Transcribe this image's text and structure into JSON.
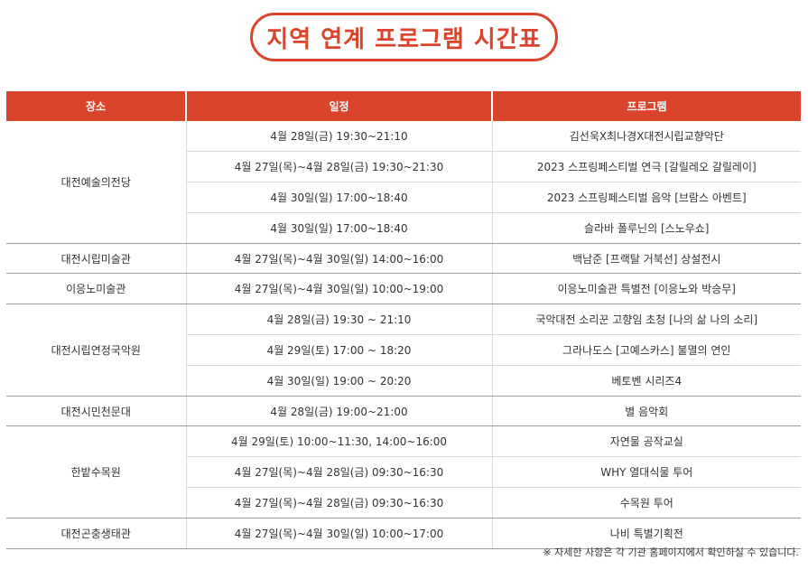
{
  "title": "지역 연계 프로그램 시간표",
  "headers": {
    "venue": "장소",
    "schedule": "일정",
    "program": "프로그램"
  },
  "groups": [
    {
      "venue": "대전예술의전당",
      "rows": [
        {
          "schedule": "4월 28일(금) 19:30~21:10",
          "program": "김선욱X최나경X대전시립교향악단"
        },
        {
          "schedule": "4월 27일(목)~4월 28일(금) 19:30~21:30",
          "program": "2023 스프링페스티벌 연극 [갈릴레오 갈릴레이]"
        },
        {
          "schedule": "4월 30일(일) 17:00~18:40",
          "program": "2023 스프링페스티벌 음악 [브람스 아벤트]"
        },
        {
          "schedule": "4월 30일(일) 17:00~18:40",
          "program": "슬라바 폴루닌의 [스노우쇼]"
        }
      ]
    },
    {
      "venue": "대전시립미술관",
      "rows": [
        {
          "schedule": "4월 27일(목)~4월 30일(일) 14:00~16:00",
          "program": "백남준 [프랙탈 거북선] 상설전시"
        }
      ]
    },
    {
      "venue": "이응노미술관",
      "rows": [
        {
          "schedule": "4월 27일(목)~4월 30일(일) 10:00~19:00",
          "program": "이응노미술관 특별전 [이응노와 박승무]"
        }
      ]
    },
    {
      "venue": "대전시립연정국악원",
      "rows": [
        {
          "schedule": "4월 28일(금) 19:30 ~ 21:10",
          "program": "국악대전 소리꾼 고향임 초청 [나의 삶 나의 소리]"
        },
        {
          "schedule": "4월 29일(토) 17:00 ~ 18:20",
          "program": "그라나도스 [고예스카스] 불멸의 연인"
        },
        {
          "schedule": "4월 30일(일) 19:00 ~ 20:20",
          "program": "베토벤 시리즈4"
        }
      ]
    },
    {
      "venue": "대전시민천문대",
      "rows": [
        {
          "schedule": "4월 28일(금) 19:00~21:00",
          "program": "별 음악회"
        }
      ]
    },
    {
      "venue": "한밭수목원",
      "rows": [
        {
          "schedule": "4월 29일(토) 10:00~11:30, 14:00~16:00",
          "program": "자연물 공작교실"
        },
        {
          "schedule": "4월 27일(목)~4월 28일(금) 09:30~16:30",
          "program": "WHY 열대식물 투어"
        },
        {
          "schedule": "4월 27일(목)~4월 28일(금) 09:30~16:30",
          "program": "수목원 투어"
        }
      ]
    },
    {
      "venue": "대전곤충생태관",
      "rows": [
        {
          "schedule": "4월 27일(목)~4월 30일(일) 10:00~17:00",
          "program": "나비 특별기획전"
        }
      ]
    }
  ],
  "note": "※ 자세한 사항은 각 기관 홈페이지에서 확인하실 수 있습니다.",
  "colors": {
    "accent": "#d9442a",
    "header_text": "#ffffff",
    "body_text": "#333333"
  }
}
